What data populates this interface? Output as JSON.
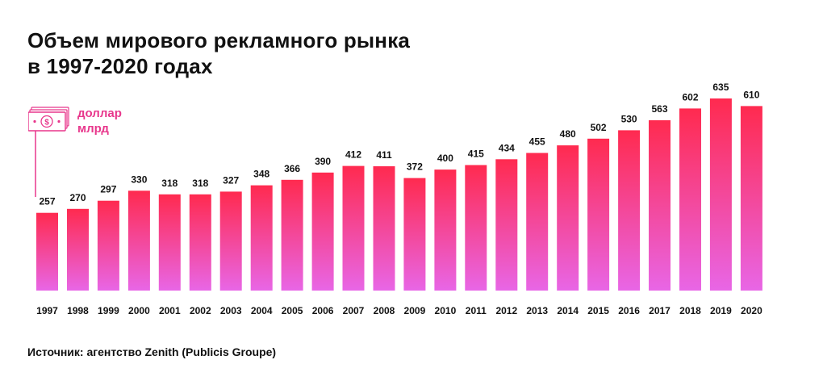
{
  "title": {
    "line1": "Объем мирового рекламного рынка",
    "line2": "в 1997-2020 годах"
  },
  "unit": {
    "line1": "доллар",
    "line2": "млрд",
    "icon": "dollar-banknote-icon"
  },
  "source": "Источник: агентство Zenith (Publicis Groupe)",
  "colors": {
    "bar_top": "#ff2a4f",
    "bar_bottom": "#e866e6",
    "accent": "#e8378c"
  },
  "chart_data": {
    "type": "bar",
    "categories": [
      "1997",
      "1998",
      "1999",
      "2000",
      "2001",
      "2002",
      "2003",
      "2004",
      "2005",
      "2006",
      "2007",
      "2008",
      "2009",
      "2010",
      "2011",
      "2012",
      "2013",
      "2014",
      "2015",
      "2016",
      "2017",
      "2018",
      "2019",
      "2020"
    ],
    "values": [
      257,
      270,
      297,
      330,
      318,
      318,
      327,
      348,
      366,
      390,
      412,
      411,
      372,
      400,
      415,
      434,
      455,
      480,
      502,
      530,
      563,
      602,
      635,
      610
    ],
    "title": "Объем мирового рекламного рынка в 1997-2020 годах",
    "xlabel": "",
    "ylabel": "доллар млрд",
    "ylim": [
      0,
      635
    ],
    "grid": false,
    "data_labels": true
  }
}
